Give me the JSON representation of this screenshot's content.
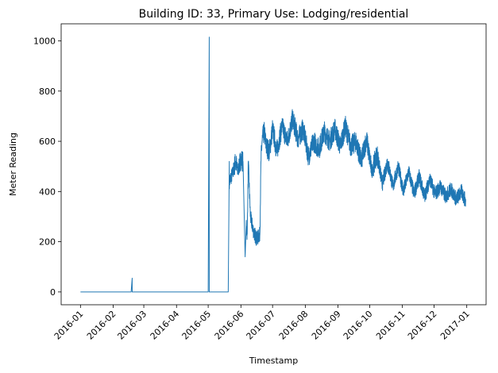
{
  "chart_data": {
    "type": "line",
    "title": "Building ID: 33, Primary Use: Lodging/residential",
    "xlabel": "Timestamp",
    "ylabel": "Meter Reading",
    "xlim": [
      "2016-01-01",
      "2017-01-01"
    ],
    "ylim": [
      -51,
      1068
    ],
    "grid": false,
    "legend": "none",
    "x_ticks": [
      "2016-01",
      "2016-02",
      "2016-03",
      "2016-04",
      "2016-05",
      "2016-06",
      "2016-07",
      "2016-08",
      "2016-09",
      "2016-10",
      "2016-11",
      "2016-12",
      "2017-01"
    ],
    "y_ticks": [
      0,
      200,
      400,
      600,
      800,
      1000
    ],
    "series": [
      {
        "color": "#1f77b4",
        "x": [
          "2016-01-01",
          "2016-02-18",
          "2016-02-19",
          "2016-02-19",
          "2016-05-01",
          "2016-05-02",
          "2016-05-02",
          "2016-05-03",
          "2016-05-03",
          "2016-05-20",
          "2016-05-21",
          "2016-05-21",
          "2016-05-24",
          "2016-05-27",
          "2016-05-29",
          "2016-06-01",
          "2016-06-03",
          "2016-06-05",
          "2016-06-06",
          "2016-06-07",
          "2016-06-08",
          "2016-06-10",
          "2016-06-13",
          "2016-06-16",
          "2016-06-19",
          "2016-06-20",
          "2016-06-21",
          "2016-06-23",
          "2016-06-25",
          "2016-06-28",
          "2016-07-01",
          "2016-07-05",
          "2016-07-10",
          "2016-07-15",
          "2016-07-20",
          "2016-07-25",
          "2016-07-30",
          "2016-08-04",
          "2016-08-09",
          "2016-08-14",
          "2016-08-19",
          "2016-08-24",
          "2016-08-29",
          "2016-09-03",
          "2016-09-08",
          "2016-09-13",
          "2016-09-18",
          "2016-09-23",
          "2016-09-28",
          "2016-10-03",
          "2016-10-08",
          "2016-10-13",
          "2016-10-18",
          "2016-10-23",
          "2016-10-28",
          "2016-11-02",
          "2016-11-07",
          "2016-11-12",
          "2016-11-17",
          "2016-11-22",
          "2016-11-27",
          "2016-12-02",
          "2016-12-07",
          "2016-12-12",
          "2016-12-17",
          "2016-12-22",
          "2016-12-27",
          "2016-12-31"
        ],
        "y": [
          0,
          0,
          55,
          0,
          0,
          1015,
          0,
          0,
          0,
          0,
          520,
          440,
          470,
          520,
          480,
          530,
          520,
          140,
          260,
          230,
          520,
          300,
          240,
          210,
          230,
          520,
          600,
          640,
          580,
          560,
          650,
          560,
          660,
          600,
          690,
          610,
          650,
          540,
          600,
          570,
          640,
          600,
          650,
          580,
          660,
          580,
          600,
          520,
          610,
          480,
          550,
          430,
          520,
          420,
          500,
          400,
          480,
          390,
          460,
          380,
          450,
          390,
          420,
          380,
          410,
          370,
          400,
          360
        ]
      }
    ]
  }
}
